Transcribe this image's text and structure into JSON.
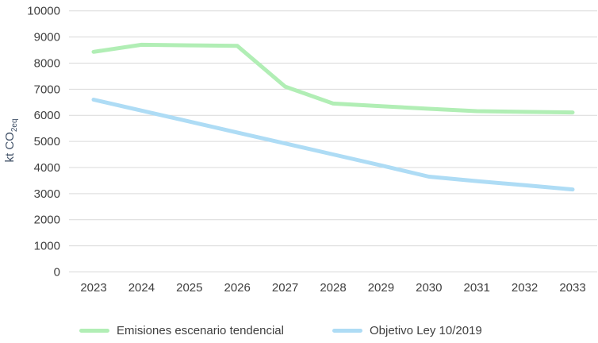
{
  "chart_data": {
    "type": "line",
    "title": "",
    "ylabel_main": "kt CO",
    "ylabel_sub": "2eq",
    "xlabel": "",
    "categories": [
      "2023",
      "2024",
      "2025",
      "2026",
      "2027",
      "2028",
      "2029",
      "2030",
      "2031",
      "2032",
      "2033"
    ],
    "series": [
      {
        "name": "Emisiones escenario tendencial",
        "color": "#b1eeb5",
        "values": [
          8430,
          8700,
          8680,
          8660,
          7100,
          6450,
          6350,
          6250,
          6160,
          6130,
          6110
        ]
      },
      {
        "name": "Objetivo Ley 10/2019",
        "color": "#aedcf5",
        "values": [
          6600,
          6180,
          5760,
          5340,
          4920,
          4500,
          4080,
          3650,
          3480,
          3320,
          3160
        ]
      }
    ],
    "ylim": [
      0,
      10000
    ],
    "ytick_step": 1000,
    "ytick_labels": [
      "0",
      "1000",
      "2000",
      "3000",
      "4000",
      "5000",
      "6000",
      "7000",
      "8000",
      "9000",
      "10000"
    ],
    "grid": "horizontal",
    "legend_position": "bottom",
    "colors": {
      "gridline": "#d9d9d9",
      "tick_text": "#404040",
      "axis_title": "#44546a",
      "background": "#ffffff"
    }
  }
}
